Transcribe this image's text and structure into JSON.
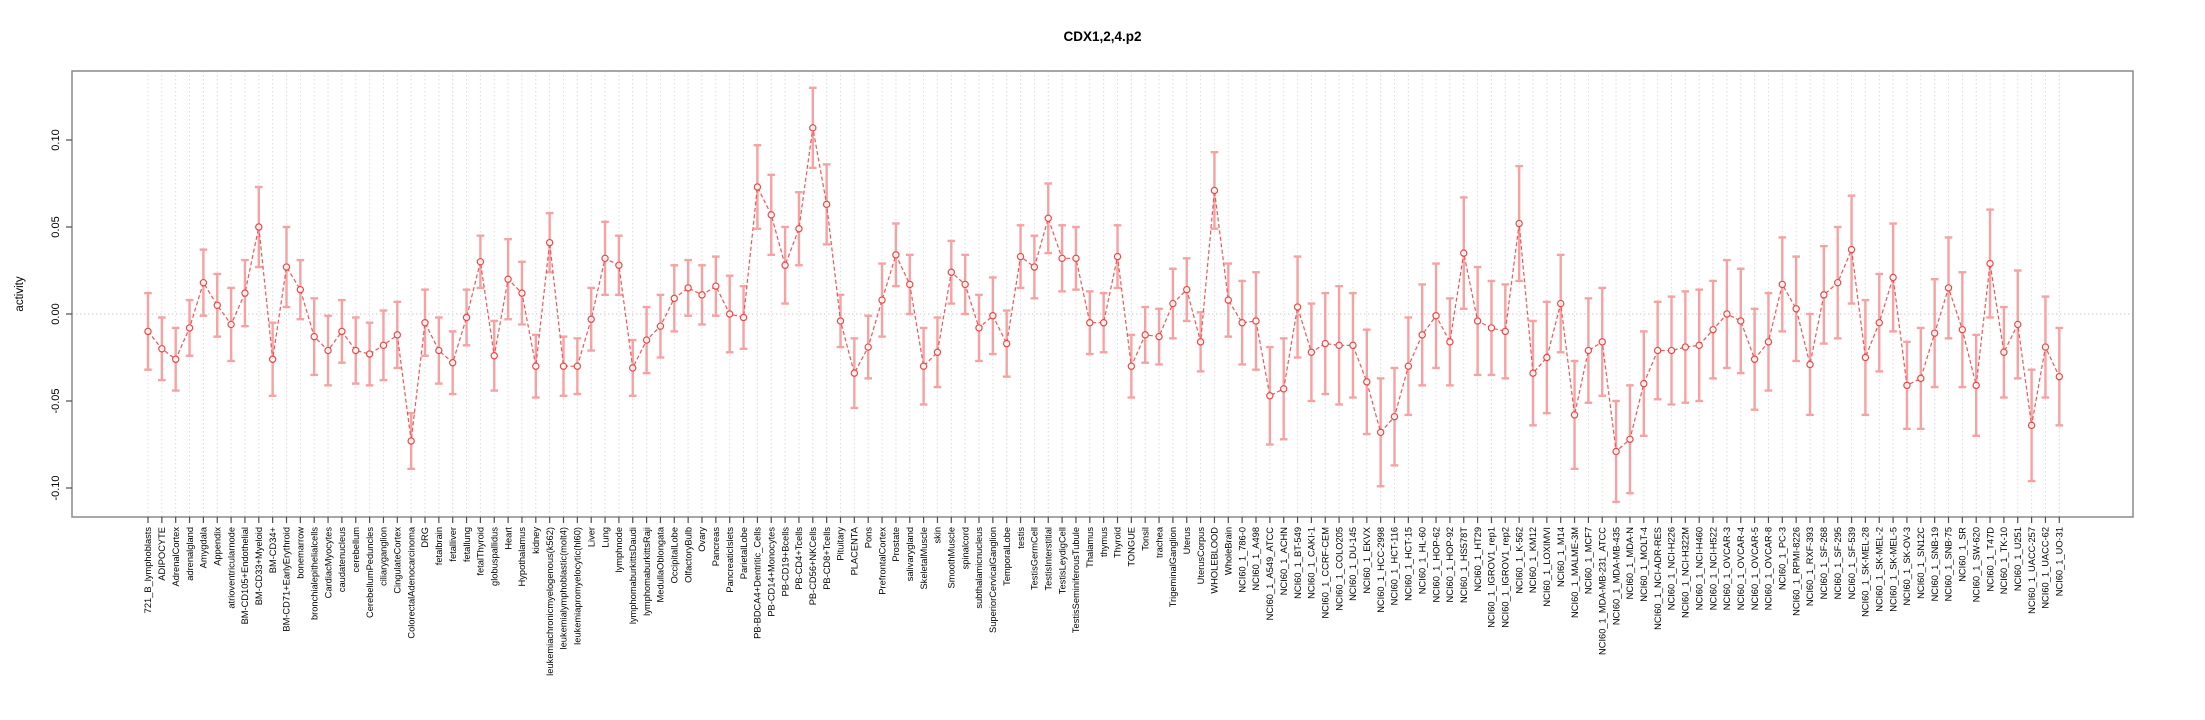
{
  "title": "CDX1,2,4.p2",
  "chart_data": {
    "type": "line",
    "title": "CDX1,2,4.p2",
    "xlabel": "",
    "ylabel": "activity",
    "ylim": [
      -0.117,
      0.139
    ],
    "ytick_values": [
      -0.1,
      -0.05,
      0.0,
      0.05,
      0.1
    ],
    "ytick_labels": [
      "-0.10",
      "-0.05",
      "0.00",
      "0.05",
      "0.10"
    ],
    "grid": "light dotted vertical gridline at every category; dotted horizontal line at y=0 only",
    "legend_position": "none",
    "marker": "open-circle",
    "line_style": "dashed",
    "error_bars": true,
    "categories": [
      "721_B_lymphoblasts",
      "ADIPOCYTE",
      "AdrenalCortex",
      "adrenalgland",
      "Amygdala",
      "Appendix",
      "atrioventricularnode",
      "BM-CD105+Endothelial",
      "BM-CD33+Myeloid",
      "BM-CD34+",
      "BM-CD71+EarlyErythroid",
      "bonemarrow",
      "bronchialepithelialcells",
      "CardiacMyocytes",
      "caudatenucleus",
      "cerebellum",
      "CerebellumPeduncles",
      "ciliaryganglion",
      "CingulateCortex",
      "ColorectalAdenocarcinoma",
      "DRG",
      "fetalbrain",
      "fetalliver",
      "fetallung",
      "fetalThyroid",
      "globuspallidus",
      "Heart",
      "Hypothalamus",
      "kidney",
      "leukemiachronicmyelogenous(k562)",
      "leukemialymphoblastic(molt4)",
      "leukemiapromyelocytic(hl60)",
      "Liver",
      "Lung",
      "lymphnode",
      "lymphomaburkittsDaudi",
      "lymphomaburkittsRaji",
      "MedullaOblongata",
      "OccipitalLobe",
      "OlfactoryBulb",
      "Ovary",
      "Pancreas",
      "PancreaticIslets",
      "ParietalLobe",
      "PB-BDCA4+Dentritic_Cells",
      "PB-CD14+Monocytes",
      "PB-CD19+Bcells",
      "PB-CD4+Tcells",
      "PB-CD56+NKCells",
      "PB-CD8+Tcells",
      "Pituitary",
      "PLACENTA",
      "Pons",
      "PrefrontalCortex",
      "Prostate",
      "salivarygland",
      "SkeletalMuscle",
      "skin",
      "SmoothMuscle",
      "spinalcord",
      "subthalamicnucleus",
      "SuperiorCervicalGanglion",
      "TemporalLobe",
      "testis",
      "TestisGermCell",
      "TestisInterstitial",
      "TestisLeydigCell",
      "TestisSeminiferousTubule",
      "Thalamus",
      "thymus",
      "Thyroid",
      "TONGUE",
      "Tonsil",
      "trachea",
      "TrigeminalGanglion",
      "Uterus",
      "UterusCorpus",
      "WHOLEBLOOD",
      "WholeBrain",
      "NCI60_1_786-0",
      "NCI60_1_A498",
      "NCI60_1_A549_ATCC",
      "NCI60_1_ACHN",
      "NCI60_1_BT-549",
      "NCI60_1_CAKI-1",
      "NCI60_1_CCRF-CEM",
      "NCI60_1_COLO205",
      "NCI60_1_DU-145",
      "NCI60_1_EKVX",
      "NCI60_1_HCC-2998",
      "NCI60_1_HCT-116",
      "NCI60_1_HCT-15",
      "NCI60_1_HL-60",
      "NCI60_1_HOP-62",
      "NCI60_1_HOP-92",
      "NCI60_1_HS578T",
      "NCI60_1_HT29",
      "NCI60_1_IGROV1_rep1",
      "NCI60_1_IGROV1_rep2",
      "NCI60_1_K-562",
      "NCI60_1_KM12",
      "NCI60_1_LOXIMVI",
      "NCI60_1_M14",
      "NCI60_1_MALME-3M",
      "NCI60_1_MCF7",
      "NCI60_1_MDA-MB-231_ATCC",
      "NCI60_1_MDA-MB-435",
      "NCI60_1_MDA-N",
      "NCI60_1_MOLT-4",
      "NCI60_1_NCI-ADR-RES",
      "NCI60_1_NCI-H226",
      "NCI60_1_NCI-H322M",
      "NCI60_1_NCI-H460",
      "NCI60_1_NCI-H522",
      "NCI60_1_OVCAR-3",
      "NCI60_1_OVCAR-4",
      "NCI60_1_OVCAR-5",
      "NCI60_1_OVCAR-8",
      "NCI60_1_PC-3",
      "NCI60_1_RPMI-8226",
      "NCI60_1_RXF-393",
      "NCI60_1_SF-268",
      "NCI60_1_SF-295",
      "NCI60_1_SF-539",
      "NCI60_1_SK-MEL-28",
      "NCI60_1_SK-MEL-2",
      "NCI60_1_SK-MEL-5",
      "NCI60_1_SK-OV-3",
      "NCI60_1_SN12C",
      "NCI60_1_SNB-19",
      "NCI60_1_SNB-75",
      "NCI60_1_SR",
      "NCI60_1_SW-620",
      "NCI60_1_T47D",
      "NCI60_1_TK-10",
      "NCI60_1_U251",
      "NCI60_1_UACC-257",
      "NCI60_1_UACC-62",
      "NCI60_1_UO-31"
    ],
    "series": [
      {
        "name": "activity",
        "values": [
          -0.01,
          -0.02,
          -0.026,
          -0.008,
          0.018,
          0.005,
          -0.006,
          0.012,
          0.05,
          -0.026,
          0.027,
          0.014,
          -0.013,
          -0.021,
          -0.01,
          -0.021,
          -0.023,
          -0.018,
          -0.012,
          -0.073,
          -0.005,
          -0.021,
          -0.028,
          -0.002,
          0.03,
          -0.024,
          0.02,
          0.012,
          -0.03,
          0.041,
          -0.03,
          -0.03,
          -0.003,
          0.032,
          0.028,
          -0.031,
          -0.015,
          -0.007,
          0.009,
          0.015,
          0.011,
          0.016,
          0.0,
          -0.002,
          0.073,
          0.057,
          0.028,
          0.049,
          0.107,
          0.063,
          -0.004,
          -0.034,
          -0.019,
          0.008,
          0.034,
          0.017,
          -0.03,
          -0.022,
          0.024,
          0.017,
          -0.008,
          -0.001,
          -0.017,
          0.033,
          0.027,
          0.055,
          0.032,
          0.032,
          -0.005,
          -0.005,
          0.033,
          -0.03,
          -0.012,
          -0.013,
          0.006,
          0.014,
          -0.016,
          0.071,
          0.008,
          -0.005,
          -0.004,
          -0.047,
          -0.043,
          0.004,
          -0.022,
          -0.017,
          -0.018,
          -0.018,
          -0.039,
          -0.068,
          -0.059,
          -0.03,
          -0.012,
          -0.001,
          -0.016,
          0.035,
          -0.004,
          -0.008,
          -0.01,
          0.052,
          -0.034,
          -0.025,
          0.006,
          -0.058,
          -0.021,
          -0.016,
          -0.079,
          -0.072,
          -0.04,
          -0.021,
          -0.021,
          -0.019,
          -0.018,
          -0.009,
          0.0,
          -0.004,
          -0.026,
          -0.016,
          0.017,
          0.003,
          -0.029,
          0.011,
          0.018,
          0.037,
          -0.025,
          -0.005,
          0.021,
          -0.041,
          -0.037,
          -0.011,
          0.015,
          -0.009,
          -0.041,
          0.029,
          -0.022,
          -0.006,
          -0.064,
          -0.019,
          -0.036
        ]
      },
      {
        "name": "error (half-width of bar)",
        "values": [
          0.022,
          0.018,
          0.018,
          0.016,
          0.019,
          0.018,
          0.021,
          0.019,
          0.023,
          0.021,
          0.023,
          0.017,
          0.022,
          0.02,
          0.018,
          0.019,
          0.018,
          0.02,
          0.019,
          0.016,
          0.019,
          0.019,
          0.018,
          0.016,
          0.015,
          0.02,
          0.023,
          0.018,
          0.018,
          0.017,
          0.017,
          0.016,
          0.018,
          0.021,
          0.017,
          0.016,
          0.019,
          0.018,
          0.019,
          0.016,
          0.017,
          0.017,
          0.022,
          0.018,
          0.024,
          0.023,
          0.022,
          0.021,
          0.023,
          0.023,
          0.015,
          0.02,
          0.018,
          0.021,
          0.018,
          0.017,
          0.022,
          0.02,
          0.018,
          0.017,
          0.019,
          0.022,
          0.019,
          0.018,
          0.018,
          0.02,
          0.019,
          0.018,
          0.018,
          0.017,
          0.018,
          0.018,
          0.016,
          0.016,
          0.02,
          0.018,
          0.017,
          0.022,
          0.021,
          0.024,
          0.028,
          0.028,
          0.029,
          0.029,
          0.028,
          0.029,
          0.034,
          0.03,
          0.03,
          0.031,
          0.028,
          0.028,
          0.029,
          0.03,
          0.025,
          0.032,
          0.031,
          0.027,
          0.027,
          0.033,
          0.03,
          0.032,
          0.028,
          0.031,
          0.03,
          0.031,
          0.029,
          0.031,
          0.03,
          0.028,
          0.031,
          0.032,
          0.032,
          0.028,
          0.031,
          0.03,
          0.029,
          0.028,
          0.027,
          0.03,
          0.029,
          0.028,
          0.032,
          0.031,
          0.033,
          0.028,
          0.031,
          0.025,
          0.029,
          0.031,
          0.029,
          0.033,
          0.029,
          0.031,
          0.026,
          0.031,
          0.032,
          0.029,
          0.028
        ]
      }
    ]
  },
  "colors": {
    "line": "#f25555",
    "error_bar": "#f7a2a2",
    "marker_stroke": "#ee4646",
    "marker_fill": "#ffffff",
    "grid": "#dcdcdc",
    "zero_line": "#c9c9c9",
    "box_border": "#8a8a8a",
    "tick": "#4d4d4d",
    "text": "#000000",
    "background": "#ffffff"
  }
}
